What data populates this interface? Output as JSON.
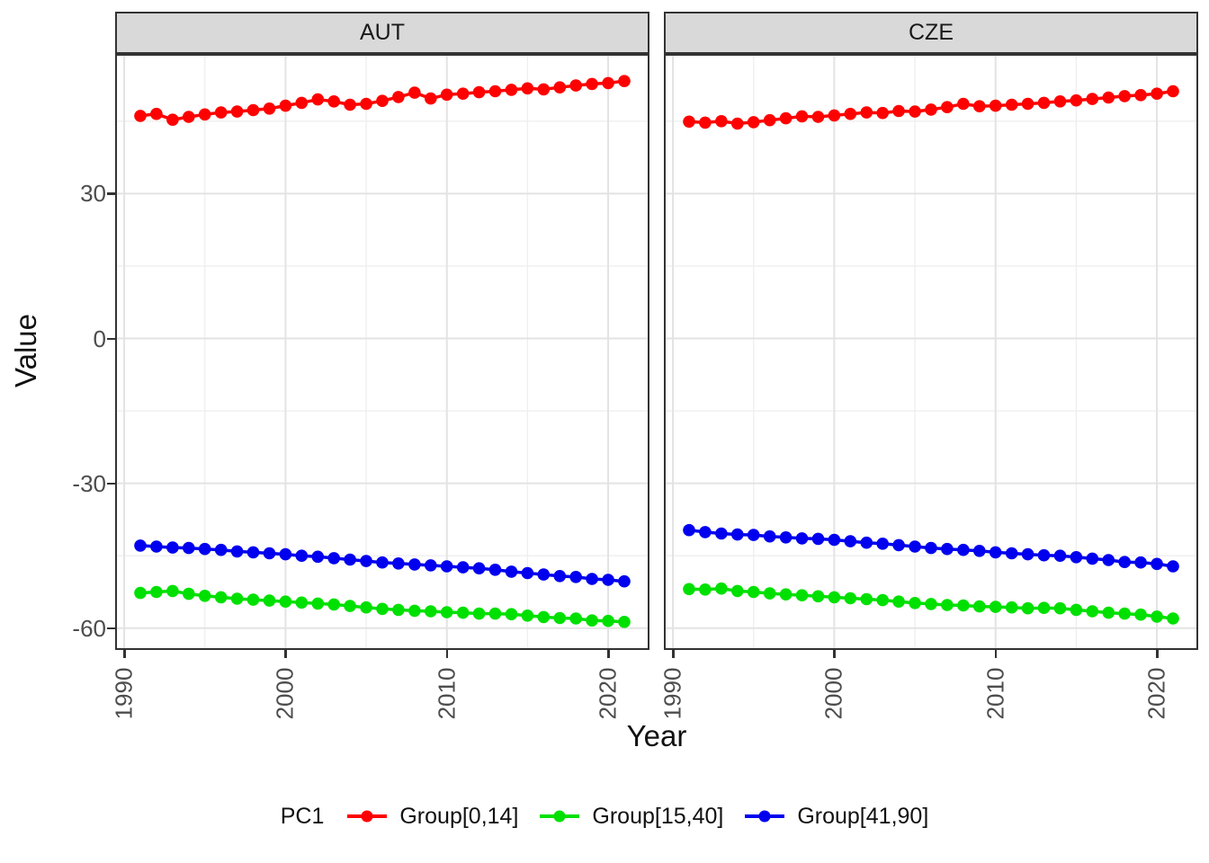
{
  "chart_data": {
    "type": "line",
    "xlabel": "Year",
    "ylabel": "Value",
    "x": [
      1991,
      1992,
      1993,
      1994,
      1995,
      1996,
      1997,
      1998,
      1999,
      2000,
      2001,
      2002,
      2003,
      2004,
      2005,
      2006,
      2007,
      2008,
      2009,
      2010,
      2011,
      2012,
      2013,
      2014,
      2015,
      2016,
      2017,
      2018,
      2019,
      2020,
      2021
    ],
    "x_ticks": [
      "1990",
      "2000",
      "2010",
      "2020"
    ],
    "x_tick_values": [
      1990,
      2000,
      2010,
      2020
    ],
    "x_minor_values": [
      1995,
      2005,
      2015
    ],
    "y_ticks": [
      "30",
      "0",
      "-30",
      "-60"
    ],
    "y_tick_values": [
      30,
      0,
      -30,
      -60
    ],
    "y_minor_values": [
      45,
      15,
      -15,
      -45
    ],
    "xlim": [
      1989.4,
      2022.6
    ],
    "ylim": [
      -64.5,
      58.9
    ],
    "grid": true,
    "legend_position": "bottom",
    "legend": {
      "title": "PC1",
      "entries": [
        {
          "label": "Group[0,14]",
          "color": "#FF0000"
        },
        {
          "label": "Group[15,40]",
          "color": "#00E000"
        },
        {
          "label": "Group[41,90]",
          "color": "#0000EE"
        }
      ]
    },
    "facets": [
      {
        "label": "AUT",
        "series": [
          {
            "name": "Group[0,14]",
            "color": "#FF0000",
            "values": [
              46.1,
              46.5,
              45.3,
              45.9,
              46.4,
              46.8,
              47.0,
              47.3,
              47.6,
              48.2,
              48.8,
              49.5,
              49.1,
              48.4,
              48.6,
              49.2,
              50.0,
              50.9,
              49.7,
              50.5,
              50.7,
              51.0,
              51.2,
              51.5,
              51.8,
              51.6,
              52.0,
              52.4,
              52.7,
              52.9,
              53.3
            ]
          },
          {
            "name": "Group[15,40]",
            "color": "#00E000",
            "values": [
              -52.7,
              -52.5,
              -52.3,
              -52.9,
              -53.3,
              -53.6,
              -53.9,
              -54.1,
              -54.3,
              -54.5,
              -54.7,
              -54.9,
              -55.1,
              -55.4,
              -55.7,
              -56.0,
              -56.2,
              -56.4,
              -56.5,
              -56.7,
              -56.8,
              -57.0,
              -57.0,
              -57.1,
              -57.4,
              -57.7,
              -57.9,
              -58.0,
              -58.4,
              -58.5,
              -58.7
            ]
          },
          {
            "name": "Group[41,90]",
            "color": "#0000EE",
            "values": [
              -42.9,
              -43.1,
              -43.3,
              -43.4,
              -43.6,
              -43.8,
              -44.1,
              -44.3,
              -44.5,
              -44.7,
              -45.0,
              -45.2,
              -45.5,
              -45.8,
              -46.1,
              -46.4,
              -46.6,
              -46.8,
              -47.0,
              -47.2,
              -47.4,
              -47.6,
              -47.9,
              -48.3,
              -48.6,
              -48.9,
              -49.2,
              -49.4,
              -49.8,
              -50.0,
              -50.3
            ]
          }
        ]
      },
      {
        "label": "CZE",
        "series": [
          {
            "name": "Group[0,14]",
            "color": "#FF0000",
            "values": [
              44.9,
              44.7,
              45.0,
              44.5,
              44.8,
              45.2,
              45.6,
              46.0,
              45.9,
              46.2,
              46.5,
              46.8,
              46.7,
              47.1,
              47.0,
              47.4,
              47.9,
              48.6,
              48.1,
              48.2,
              48.4,
              48.6,
              48.8,
              49.1,
              49.3,
              49.6,
              49.9,
              50.2,
              50.4,
              50.7,
              51.2
            ]
          },
          {
            "name": "Group[15,40]",
            "color": "#00E000",
            "values": [
              -51.9,
              -52.0,
              -51.8,
              -52.3,
              -52.5,
              -52.8,
              -53.0,
              -53.2,
              -53.4,
              -53.6,
              -53.8,
              -54.0,
              -54.2,
              -54.5,
              -54.8,
              -55.0,
              -55.2,
              -55.3,
              -55.5,
              -55.6,
              -55.7,
              -55.9,
              -55.8,
              -55.9,
              -56.2,
              -56.5,
              -56.8,
              -57.0,
              -57.2,
              -57.6,
              -58.0
            ]
          },
          {
            "name": "Group[41,90]",
            "color": "#0000EE",
            "values": [
              -39.7,
              -40.1,
              -40.4,
              -40.6,
              -40.7,
              -41.0,
              -41.2,
              -41.4,
              -41.5,
              -41.7,
              -42.0,
              -42.3,
              -42.5,
              -42.8,
              -43.1,
              -43.4,
              -43.6,
              -43.8,
              -44.0,
              -44.3,
              -44.5,
              -44.7,
              -44.9,
              -45.0,
              -45.3,
              -45.6,
              -45.9,
              -46.3,
              -46.4,
              -46.7,
              -47.2
            ]
          }
        ]
      }
    ]
  }
}
